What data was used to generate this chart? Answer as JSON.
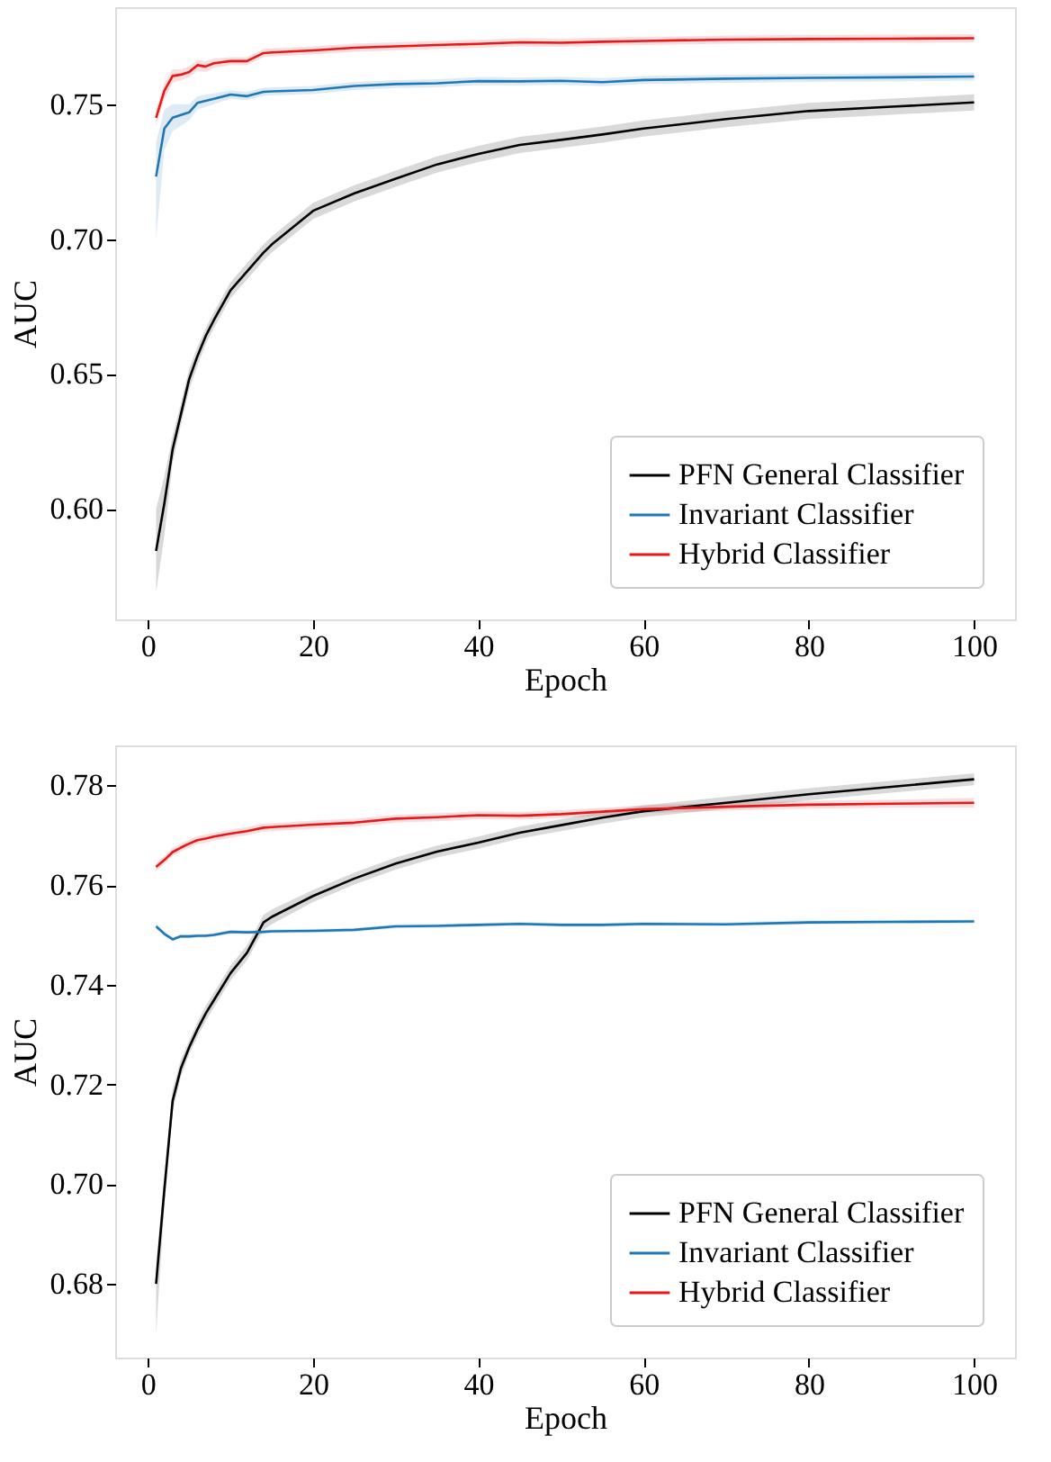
{
  "chart_data": [
    {
      "type": "line",
      "xlabel": "Epoch",
      "ylabel": "AUC",
      "xlim": [
        -3.95,
        104.95
      ],
      "xticks": [
        0,
        20,
        40,
        60,
        80,
        100
      ],
      "ylim": [
        0.559,
        0.786
      ],
      "yticks": [
        {
          "value": 0.6,
          "label": "0.60"
        },
        {
          "value": 0.65,
          "label": "0.65"
        },
        {
          "value": 0.7,
          "label": "0.70"
        },
        {
          "value": 0.75,
          "label": "0.75"
        }
      ],
      "grid": false,
      "legend": "bottom right",
      "x": [
        1,
        2,
        3,
        4,
        5,
        6,
        7,
        8,
        10,
        12,
        14,
        15,
        20,
        25,
        30,
        35,
        40,
        45,
        50,
        55,
        60,
        70,
        80,
        90,
        100
      ],
      "series": [
        {
          "name": "PFN General Classifier",
          "color": "#000000",
          "values": [
            0.5844,
            0.602,
            0.622,
            0.635,
            0.648,
            0.6566,
            0.664,
            0.67,
            0.681,
            0.688,
            0.695,
            0.698,
            0.7105,
            0.717,
            0.7224,
            0.7277,
            0.7316,
            0.7349,
            0.7368,
            0.7388,
            0.741,
            0.7445,
            0.7475,
            0.7491,
            0.7507
          ],
          "lower": [
            0.569,
            0.59,
            0.617,
            0.631,
            0.644,
            0.653,
            0.661,
            0.667,
            0.678,
            0.685,
            0.692,
            0.695,
            0.7075,
            0.714,
            0.7194,
            0.7247,
            0.7286,
            0.7319,
            0.7338,
            0.7358,
            0.738,
            0.7415,
            0.7445,
            0.7461,
            0.7477
          ],
          "upper": [
            0.6,
            0.612,
            0.627,
            0.639,
            0.652,
            0.66,
            0.667,
            0.673,
            0.684,
            0.691,
            0.698,
            0.701,
            0.7135,
            0.72,
            0.7254,
            0.7307,
            0.7346,
            0.7379,
            0.7398,
            0.7418,
            0.744,
            0.7475,
            0.7505,
            0.7521,
            0.7537
          ]
        },
        {
          "name": "Invariant Classifier",
          "color": "#1f77b4",
          "values": [
            0.7232,
            0.741,
            0.745,
            0.746,
            0.747,
            0.7505,
            0.7513,
            0.752,
            0.7536,
            0.753,
            0.7546,
            0.7548,
            0.7553,
            0.7568,
            0.7575,
            0.7578,
            0.7586,
            0.7585,
            0.7587,
            0.7582,
            0.759,
            0.7595,
            0.7598,
            0.76,
            0.7603
          ],
          "lower": [
            0.7,
            0.733,
            0.74,
            0.742,
            0.744,
            0.748,
            0.749,
            0.75,
            0.752,
            0.7515,
            0.7531,
            0.7533,
            0.7538,
            0.7553,
            0.756,
            0.7563,
            0.7571,
            0.757,
            0.7572,
            0.7567,
            0.7575,
            0.758,
            0.7583,
            0.7585,
            0.7588
          ],
          "upper": [
            0.736,
            0.748,
            0.75,
            0.75,
            0.75,
            0.753,
            0.7536,
            0.754,
            0.7551,
            0.7545,
            0.7561,
            0.7563,
            0.7568,
            0.7583,
            0.759,
            0.7593,
            0.7601,
            0.76,
            0.7602,
            0.7597,
            0.7605,
            0.761,
            0.7613,
            0.7615,
            0.7618
          ]
        },
        {
          "name": "Hybrid Classifier",
          "color": "#e31a1c",
          "values": [
            0.745,
            0.755,
            0.7605,
            0.761,
            0.762,
            0.7645,
            0.764,
            0.7652,
            0.766,
            0.766,
            0.769,
            0.7692,
            0.77,
            0.771,
            0.7715,
            0.772,
            0.7724,
            0.773,
            0.7728,
            0.7732,
            0.7735,
            0.774,
            0.7742,
            0.7743,
            0.7745
          ],
          "lower": [
            0.742,
            0.752,
            0.758,
            0.759,
            0.76,
            0.7625,
            0.762,
            0.7635,
            0.7645,
            0.7645,
            0.7675,
            0.7677,
            0.7685,
            0.7695,
            0.77,
            0.7705,
            0.7709,
            0.7715,
            0.7713,
            0.7717,
            0.772,
            0.7725,
            0.7727,
            0.7728,
            0.773
          ],
          "upper": [
            0.748,
            0.758,
            0.763,
            0.763,
            0.764,
            0.7665,
            0.766,
            0.7669,
            0.7675,
            0.7675,
            0.7705,
            0.7707,
            0.7715,
            0.7725,
            0.773,
            0.7735,
            0.7739,
            0.7745,
            0.7743,
            0.7747,
            0.775,
            0.7755,
            0.7757,
            0.7758,
            0.776
          ]
        }
      ]
    },
    {
      "type": "line",
      "xlabel": "Epoch",
      "ylabel": "AUC",
      "xlim": [
        -3.95,
        104.95
      ],
      "xticks": [
        0,
        20,
        40,
        60,
        80,
        100
      ],
      "ylim": [
        0.6652,
        0.788
      ],
      "yticks": [
        {
          "value": 0.68,
          "label": "0.68"
        },
        {
          "value": 0.7,
          "label": "0.70"
        },
        {
          "value": 0.72,
          "label": "0.72"
        },
        {
          "value": 0.74,
          "label": "0.74"
        },
        {
          "value": 0.76,
          "label": "0.76"
        },
        {
          "value": 0.78,
          "label": "0.78"
        }
      ],
      "grid": false,
      "legend": "bottom right",
      "x": [
        1,
        2,
        3,
        4,
        5,
        6,
        7,
        8,
        10,
        12,
        14,
        15,
        20,
        25,
        30,
        35,
        40,
        45,
        50,
        55,
        60,
        70,
        80,
        90,
        100
      ],
      "series": [
        {
          "name": "PFN General Classifier",
          "color": "#000000",
          "values": [
            0.68,
            0.6988,
            0.7167,
            0.7232,
            0.7274,
            0.731,
            0.7342,
            0.7369,
            0.7423,
            0.7464,
            0.7525,
            0.7536,
            0.7578,
            0.7613,
            0.7643,
            0.7667,
            0.7685,
            0.7705,
            0.772,
            0.7735,
            0.7748,
            0.7765,
            0.7782,
            0.7797,
            0.7812
          ],
          "lower": [
            0.67,
            0.6955,
            0.7145,
            0.7215,
            0.726,
            0.7295,
            0.7327,
            0.7354,
            0.7408,
            0.7449,
            0.751,
            0.7521,
            0.7566,
            0.7601,
            0.7631,
            0.7655,
            0.7673,
            0.7693,
            0.7708,
            0.7723,
            0.7736,
            0.7753,
            0.777,
            0.7785,
            0.78
          ],
          "upper": [
            0.684,
            0.702,
            0.719,
            0.725,
            0.7288,
            0.7325,
            0.7357,
            0.7384,
            0.7438,
            0.7479,
            0.754,
            0.7551,
            0.759,
            0.7625,
            0.7655,
            0.7679,
            0.7697,
            0.7717,
            0.7732,
            0.7747,
            0.776,
            0.7777,
            0.7794,
            0.7809,
            0.7824
          ]
        },
        {
          "name": "Invariant Classifier",
          "color": "#1f77b4",
          "values": [
            0.7517,
            0.7502,
            0.7491,
            0.7497,
            0.7497,
            0.7498,
            0.7498,
            0.75,
            0.7506,
            0.7505,
            0.7506,
            0.7507,
            0.7508,
            0.751,
            0.7517,
            0.7518,
            0.752,
            0.7522,
            0.752,
            0.752,
            0.7522,
            0.7521,
            0.7525,
            0.7526,
            0.7527
          ],
          "lower": [
            0.7512,
            0.7498,
            0.7487,
            0.7493,
            0.7493,
            0.7494,
            0.7494,
            0.7496,
            0.7502,
            0.7501,
            0.7502,
            0.7503,
            0.7504,
            0.7506,
            0.7513,
            0.7514,
            0.7516,
            0.7518,
            0.7516,
            0.7516,
            0.7518,
            0.7517,
            0.7521,
            0.7522,
            0.7523
          ],
          "upper": [
            0.7522,
            0.7506,
            0.7495,
            0.7501,
            0.7501,
            0.7502,
            0.7502,
            0.7504,
            0.751,
            0.7509,
            0.751,
            0.7511,
            0.7512,
            0.7514,
            0.7521,
            0.7522,
            0.7524,
            0.7526,
            0.7524,
            0.7524,
            0.7526,
            0.7525,
            0.7529,
            0.753,
            0.7531
          ]
        },
        {
          "name": "Hybrid Classifier",
          "color": "#e31a1c",
          "values": [
            0.7636,
            0.765,
            0.7666,
            0.7675,
            0.7683,
            0.769,
            0.7693,
            0.7697,
            0.7703,
            0.7708,
            0.7715,
            0.7716,
            0.7721,
            0.7725,
            0.7733,
            0.7736,
            0.774,
            0.7739,
            0.7742,
            0.7747,
            0.7752,
            0.7757,
            0.7761,
            0.7763,
            0.7765
          ],
          "lower": [
            0.7628,
            0.7642,
            0.7658,
            0.7667,
            0.7675,
            0.7682,
            0.7685,
            0.7689,
            0.7695,
            0.77,
            0.7707,
            0.7708,
            0.7713,
            0.7717,
            0.7725,
            0.7728,
            0.7732,
            0.7731,
            0.7734,
            0.7739,
            0.7744,
            0.7749,
            0.7753,
            0.7755,
            0.7755
          ],
          "upper": [
            0.7644,
            0.7658,
            0.7674,
            0.7683,
            0.7691,
            0.7698,
            0.7701,
            0.7705,
            0.7711,
            0.7716,
            0.7723,
            0.7724,
            0.7729,
            0.7733,
            0.7741,
            0.7744,
            0.7748,
            0.7747,
            0.775,
            0.7755,
            0.776,
            0.7765,
            0.7769,
            0.7771,
            0.7775
          ]
        }
      ]
    }
  ]
}
